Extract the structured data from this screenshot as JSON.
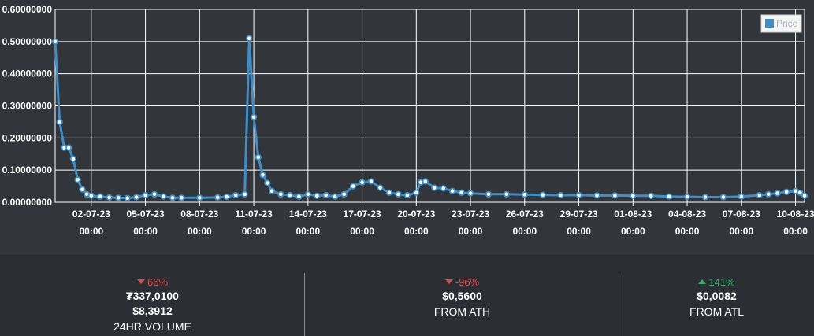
{
  "chart_data": {
    "type": "line",
    "legend": {
      "label": "Price",
      "position": "top-right",
      "color": "#3d8fc9"
    },
    "series_color": "#3d8fc9",
    "grid": true,
    "ylim": [
      0,
      0.6
    ],
    "y_ticks": [
      "0.60000000",
      "0.50000000",
      "0.40000000",
      "0.30000000",
      "0.20000000",
      "0.10000000",
      "0.00000000"
    ],
    "x_ticks": [
      {
        "date": "02-07-23",
        "time": "00:00"
      },
      {
        "date": "05-07-23",
        "time": "00:00"
      },
      {
        "date": "08-07-23",
        "time": "00:00"
      },
      {
        "date": "11-07-23",
        "time": "00:00"
      },
      {
        "date": "14-07-23",
        "time": "00:00"
      },
      {
        "date": "17-07-23",
        "time": "00:00"
      },
      {
        "date": "20-07-23",
        "time": "00:00"
      },
      {
        "date": "23-07-23",
        "time": "00:00"
      },
      {
        "date": "26-07-23",
        "time": "00:00"
      },
      {
        "date": "29-07-23",
        "time": "00:00"
      },
      {
        "date": "01-08-23",
        "time": "00:00"
      },
      {
        "date": "04-08-23",
        "time": "00:00"
      },
      {
        "date": "07-08-23",
        "time": "00:00"
      },
      {
        "date": "10-08-23",
        "time": "00:00"
      }
    ],
    "x_range": [
      "30-06-23 00:00",
      "10-08-23 12:00"
    ],
    "series": [
      {
        "name": "Price",
        "x": [
          "30-06-23 00:00",
          "30-06-23 06:00",
          "30-06-23 12:00",
          "30-06-23 18:00",
          "01-07-23 00:00",
          "01-07-23 06:00",
          "01-07-23 12:00",
          "01-07-23 18:00",
          "02-07-23 00:00",
          "02-07-23 12:00",
          "03-07-23 00:00",
          "03-07-23 12:00",
          "04-07-23 00:00",
          "04-07-23 12:00",
          "05-07-23 00:00",
          "05-07-23 12:00",
          "06-07-23 00:00",
          "06-07-23 12:00",
          "07-07-23 00:00",
          "08-07-23 00:00",
          "09-07-23 00:00",
          "09-07-23 12:00",
          "10-07-23 00:00",
          "10-07-23 12:00",
          "10-07-23 18:00",
          "11-07-23 00:00",
          "11-07-23 06:00",
          "11-07-23 12:00",
          "11-07-23 18:00",
          "12-07-23 00:00",
          "12-07-23 12:00",
          "13-07-23 00:00",
          "13-07-23 12:00",
          "14-07-23 00:00",
          "14-07-23 12:00",
          "15-07-23 00:00",
          "15-07-23 12:00",
          "16-07-23 00:00",
          "16-07-23 12:00",
          "17-07-23 00:00",
          "17-07-23 12:00",
          "18-07-23 00:00",
          "18-07-23 12:00",
          "19-07-23 00:00",
          "19-07-23 12:00",
          "20-07-23 00:00",
          "20-07-23 06:00",
          "20-07-23 12:00",
          "21-07-23 00:00",
          "21-07-23 12:00",
          "22-07-23 00:00",
          "22-07-23 12:00",
          "23-07-23 00:00",
          "24-07-23 00:00",
          "25-07-23 00:00",
          "26-07-23 00:00",
          "27-07-23 00:00",
          "28-07-23 00:00",
          "29-07-23 00:00",
          "30-07-23 00:00",
          "31-07-23 00:00",
          "01-08-23 00:00",
          "02-08-23 00:00",
          "03-08-23 00:00",
          "04-08-23 00:00",
          "05-08-23 00:00",
          "06-08-23 00:00",
          "07-08-23 00:00",
          "08-08-23 00:00",
          "08-08-23 12:00",
          "09-08-23 00:00",
          "09-08-23 12:00",
          "10-08-23 00:00",
          "10-08-23 06:00",
          "10-08-23 12:00"
        ],
        "values": [
          0.5,
          0.25,
          0.17,
          0.17,
          0.135,
          0.07,
          0.04,
          0.025,
          0.02,
          0.018,
          0.015,
          0.014,
          0.013,
          0.016,
          0.022,
          0.025,
          0.018,
          0.014,
          0.014,
          0.014,
          0.015,
          0.017,
          0.022,
          0.025,
          0.51,
          0.265,
          0.14,
          0.085,
          0.06,
          0.035,
          0.025,
          0.022,
          0.018,
          0.025,
          0.02,
          0.022,
          0.018,
          0.025,
          0.05,
          0.062,
          0.065,
          0.045,
          0.03,
          0.025,
          0.022,
          0.03,
          0.062,
          0.065,
          0.045,
          0.043,
          0.035,
          0.03,
          0.028,
          0.025,
          0.025,
          0.024,
          0.023,
          0.022,
          0.022,
          0.021,
          0.021,
          0.02,
          0.02,
          0.018,
          0.017,
          0.016,
          0.016,
          0.018,
          0.022,
          0.025,
          0.028,
          0.032,
          0.035,
          0.03,
          0.02
        ]
      }
    ]
  },
  "stats": [
    {
      "change": "66%",
      "direction": "down",
      "values": [
        "₮337,0100",
        "$8,3912"
      ],
      "label": "24HR VOLUME"
    },
    {
      "change": "-96%",
      "direction": "down",
      "values": [
        "$0,5600"
      ],
      "label": "FROM ATH"
    },
    {
      "change": "141%",
      "direction": "up",
      "values": [
        "$0,0082"
      ],
      "label": "FROM ATL"
    }
  ]
}
